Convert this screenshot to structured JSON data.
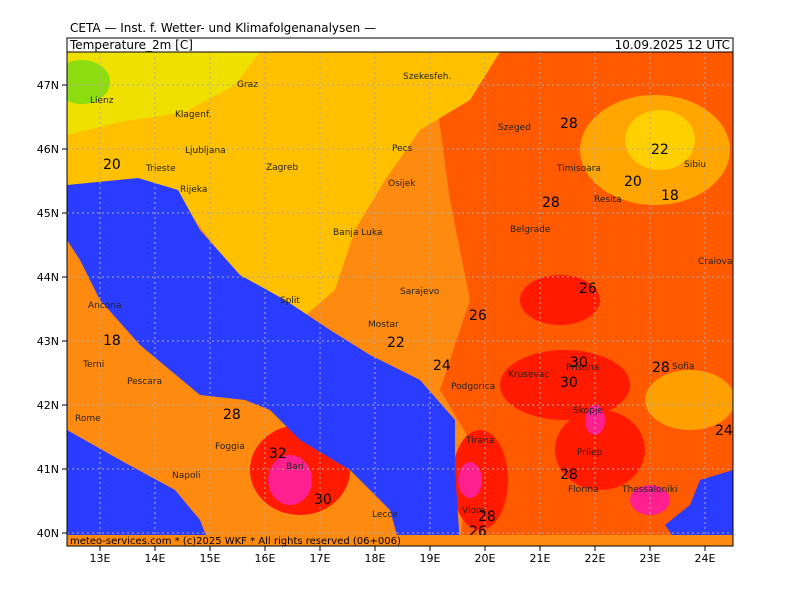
{
  "header": {
    "source": "CETA — Inst. f. Wetter- und Klimafolgenanalysen —",
    "field": "Temperature_2m [C]",
    "valid": "10.09.2025 12 UTC"
  },
  "footer": "meteo-services.com * (c)2025 WKF * All rights reserved (06+006)",
  "lat_ticks": [
    {
      "value": 47,
      "label": "47N"
    },
    {
      "value": 46,
      "label": "46N"
    },
    {
      "value": 45,
      "label": "45N"
    },
    {
      "value": 44,
      "label": "44N"
    },
    {
      "value": 43,
      "label": "43N"
    },
    {
      "value": 42,
      "label": "42N"
    },
    {
      "value": 41,
      "label": "41N"
    },
    {
      "value": 40,
      "label": "40N"
    }
  ],
  "lon_ticks": [
    {
      "value": 13,
      "label": "13E"
    },
    {
      "value": 14,
      "label": "14E"
    },
    {
      "value": 15,
      "label": "15E"
    },
    {
      "value": 16,
      "label": "16E"
    },
    {
      "value": 17,
      "label": "17E"
    },
    {
      "value": 18,
      "label": "18E"
    },
    {
      "value": 19,
      "label": "19E"
    },
    {
      "value": 20,
      "label": "20E"
    },
    {
      "value": 21,
      "label": "21E"
    },
    {
      "value": 22,
      "label": "22E"
    },
    {
      "value": 23,
      "label": "23E"
    },
    {
      "value": 24,
      "label": "24E"
    }
  ],
  "cities": [
    "Lienz",
    "Graz",
    "Szekesfeh.",
    "Klagenf.",
    "Ljubljana",
    "Zagreb",
    "Pecs",
    "Szeged",
    "Timisoara",
    "Sibiu",
    "Trieste",
    "Rijeka",
    "Osijek",
    "Resita",
    "Banja Luka",
    "Belgrade",
    "Craiova",
    "Sarajevo",
    "Ancona",
    "Split",
    "Mostar",
    "Terni",
    "Pescara",
    "Podgorica",
    "Krusevac",
    "Pristina",
    "Sofia",
    "Rome",
    "Skopje",
    "Foggia",
    "Tirana",
    "Prilep",
    "Napoli",
    "Bari",
    "Florina",
    "Thessaloniki",
    "Vlore",
    "Lecce"
  ],
  "contour_labels": [
    28,
    22,
    20,
    18,
    20,
    28,
    26,
    26,
    22,
    18,
    24,
    30,
    30,
    28,
    28,
    24,
    32,
    28,
    30,
    28,
    26
  ]
}
